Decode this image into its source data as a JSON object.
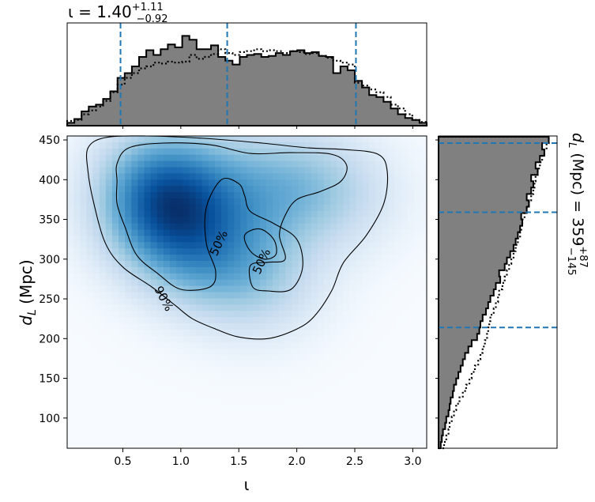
{
  "chart_data": {
    "type": "heatmap",
    "panels": [
      "main-density",
      "top-marginal",
      "right-marginal"
    ],
    "main": {
      "xlabel": "ι",
      "ylabel": "d_L (Mpc)",
      "xlim": [
        0.02,
        3.12
      ],
      "ylim": [
        62,
        455
      ],
      "xticks": [
        0.5,
        1.0,
        1.5,
        2.0,
        2.5,
        3.0
      ],
      "xtick_labels": [
        "0.5",
        "1.0",
        "1.5",
        "2.0",
        "2.5",
        "3.0"
      ],
      "yticks": [
        100,
        150,
        200,
        250,
        300,
        350,
        400,
        450
      ],
      "ytick_labels": [
        "100",
        "150",
        "200",
        "250",
        "300",
        "350",
        "400",
        "450"
      ],
      "colormap": "Blues",
      "density_peaks": [
        {
          "x": 0.82,
          "y": 400,
          "weight": 1.0
        },
        {
          "x": 0.85,
          "y": 345,
          "weight": 0.85
        },
        {
          "x": 1.2,
          "y": 300,
          "weight": 0.6
        },
        {
          "x": 1.7,
          "y": 270,
          "weight": 0.55
        },
        {
          "x": 2.0,
          "y": 395,
          "weight": 0.55
        },
        {
          "x": 1.5,
          "y": 390,
          "weight": 0.45
        },
        {
          "x": 2.45,
          "y": 380,
          "weight": 0.35
        }
      ],
      "contours": [
        {
          "label": "90%",
          "label_pos": [
            0.85,
            250
          ],
          "points": [
            [
              0.2,
              440
            ],
            [
              0.35,
              453
            ],
            [
              0.7,
              455
            ],
            [
              1.2,
              452
            ],
            [
              1.7,
              446
            ],
            [
              2.1,
              440
            ],
            [
              2.4,
              438
            ],
            [
              2.7,
              432
            ],
            [
              2.78,
              410
            ],
            [
              2.75,
              370
            ],
            [
              2.6,
              330
            ],
            [
              2.4,
              295
            ],
            [
              2.3,
              260
            ],
            [
              2.15,
              228
            ],
            [
              2.0,
              212
            ],
            [
              1.75,
              200
            ],
            [
              1.5,
              202
            ],
            [
              1.3,
              212
            ],
            [
              1.1,
              225
            ],
            [
              0.95,
              242
            ],
            [
              0.75,
              265
            ],
            [
              0.5,
              290
            ],
            [
              0.35,
              320
            ],
            [
              0.25,
              370
            ],
            [
              0.2,
              410
            ]
          ]
        },
        {
          "label": "50%",
          "label_pos": [
            1.33,
            320
          ],
          "points": [
            [
              0.45,
              398
            ],
            [
              0.45,
              420
            ],
            [
              0.55,
              440
            ],
            [
              0.85,
              446
            ],
            [
              1.25,
              444
            ],
            [
              1.6,
              433
            ],
            [
              1.95,
              434
            ],
            [
              2.3,
              432
            ],
            [
              2.43,
              418
            ],
            [
              2.38,
              398
            ],
            [
              2.2,
              385
            ],
            [
              2.0,
              375
            ],
            [
              1.9,
              355
            ],
            [
              1.85,
              330
            ],
            [
              1.9,
              300
            ],
            [
              1.75,
              296
            ],
            [
              1.6,
              292
            ],
            [
              1.62,
              265
            ],
            [
              1.75,
              260
            ],
            [
              1.95,
              262
            ],
            [
              2.05,
              290
            ],
            [
              2.0,
              325
            ],
            [
              1.8,
              345
            ],
            [
              1.6,
              360
            ],
            [
              1.55,
              380
            ],
            [
              1.5,
              395
            ],
            [
              1.35,
              400
            ],
            [
              1.22,
              365
            ],
            [
              1.22,
              320
            ],
            [
              1.3,
              285
            ],
            [
              1.25,
              265
            ],
            [
              1.0,
              262
            ],
            [
              0.8,
              282
            ],
            [
              0.62,
              305
            ],
            [
              0.52,
              340
            ],
            [
              0.45,
              370
            ]
          ]
        },
        {
          "label": "50%",
          "label_pos": [
            1.7,
            297
          ],
          "points": [
            [
              1.55,
              330
            ],
            [
              1.6,
              310
            ],
            [
              1.72,
              300
            ],
            [
              1.82,
              306
            ],
            [
              1.8,
              325
            ],
            [
              1.68,
              338
            ]
          ]
        }
      ]
    },
    "top": {
      "title": "ι = 1.40",
      "title_sup": "+1.11",
      "title_sub": "−0.92",
      "xlim": [
        0.02,
        3.12
      ],
      "bin_edges": [
        0.02,
        0.082,
        0.144,
        0.206,
        0.268,
        0.33,
        0.392,
        0.454,
        0.516,
        0.578,
        0.64,
        0.702,
        0.764,
        0.826,
        0.888,
        0.95,
        1.012,
        1.074,
        1.136,
        1.198,
        1.26,
        1.322,
        1.384,
        1.446,
        1.508,
        1.57,
        1.632,
        1.694,
        1.756,
        1.818,
        1.88,
        1.942,
        2.004,
        2.066,
        2.128,
        2.19,
        2.252,
        2.314,
        2.376,
        2.438,
        2.5,
        2.562,
        2.624,
        2.686,
        2.748,
        2.81,
        2.872,
        2.934,
        2.996,
        3.058,
        3.12
      ],
      "posterior_heights": [
        0.03,
        0.07,
        0.15,
        0.2,
        0.22,
        0.28,
        0.36,
        0.5,
        0.55,
        0.62,
        0.72,
        0.79,
        0.74,
        0.8,
        0.85,
        0.82,
        0.94,
        0.9,
        0.8,
        0.8,
        0.84,
        0.72,
        0.68,
        0.64,
        0.72,
        0.74,
        0.75,
        0.72,
        0.73,
        0.76,
        0.74,
        0.78,
        0.79,
        0.76,
        0.77,
        0.73,
        0.72,
        0.55,
        0.62,
        0.58,
        0.47,
        0.4,
        0.32,
        0.3,
        0.25,
        0.18,
        0.12,
        0.08,
        0.06,
        0.03
      ],
      "prior_heights": [
        0.05,
        0.06,
        0.12,
        0.16,
        0.2,
        0.26,
        0.35,
        0.43,
        0.5,
        0.55,
        0.6,
        0.62,
        0.66,
        0.65,
        0.67,
        0.66,
        0.67,
        0.74,
        0.7,
        0.72,
        0.75,
        0.8,
        0.76,
        0.74,
        0.77,
        0.78,
        0.8,
        0.78,
        0.79,
        0.78,
        0.76,
        0.78,
        0.77,
        0.75,
        0.76,
        0.73,
        0.71,
        0.68,
        0.66,
        0.64,
        0.45,
        0.42,
        0.38,
        0.35,
        0.3,
        0.22,
        0.18,
        0.12,
        0.06,
        0.04
      ],
      "quantile_lines": [
        0.48,
        1.4,
        2.51
      ]
    },
    "right": {
      "side_label": "d_L (Mpc) = 359",
      "side_sup": "+87",
      "side_sub": "−145",
      "ylim": [
        62,
        455
      ],
      "bin_edges": [
        62,
        70,
        78,
        86,
        94,
        102,
        110,
        118,
        126,
        134,
        142,
        150,
        158,
        166,
        174,
        182,
        190,
        198,
        206,
        214,
        222,
        230,
        238,
        246,
        254,
        262,
        270,
        278,
        286,
        294,
        302,
        310,
        318,
        326,
        334,
        342,
        350,
        358,
        366,
        374,
        382,
        390,
        398,
        406,
        414,
        422,
        430,
        438,
        446,
        454
      ],
      "posterior_widths": [
        0.02,
        0.03,
        0.04,
        0.06,
        0.07,
        0.09,
        0.1,
        0.11,
        0.13,
        0.14,
        0.16,
        0.18,
        0.2,
        0.22,
        0.24,
        0.27,
        0.3,
        0.35,
        0.37,
        0.38,
        0.4,
        0.43,
        0.45,
        0.47,
        0.5,
        0.52,
        0.56,
        0.55,
        0.6,
        0.62,
        0.65,
        0.68,
        0.7,
        0.72,
        0.74,
        0.76,
        0.75,
        0.8,
        0.82,
        0.8,
        0.84,
        0.86,
        0.84,
        0.9,
        0.88,
        0.92,
        0.96,
        0.94,
        1.0
      ],
      "prior_widths": [
        0.05,
        0.07,
        0.09,
        0.1,
        0.12,
        0.14,
        0.16,
        0.19,
        0.22,
        0.25,
        0.28,
        0.3,
        0.33,
        0.36,
        0.38,
        0.4,
        0.42,
        0.44,
        0.45,
        0.46,
        0.47,
        0.5,
        0.52,
        0.54,
        0.55,
        0.58,
        0.6,
        0.62,
        0.64,
        0.66,
        0.68,
        0.7,
        0.72,
        0.74,
        0.75,
        0.76,
        0.78,
        0.8,
        0.82,
        0.84,
        0.86,
        0.87,
        0.88,
        0.9,
        0.92,
        0.94,
        0.96,
        0.98,
        1.0
      ],
      "quantile_lines": [
        214,
        359,
        446
      ]
    },
    "colors": {
      "hist_fill": "#808080",
      "hist_edge": "#000000",
      "quantile_line": "#1f77b4",
      "contour": "#000000"
    }
  }
}
